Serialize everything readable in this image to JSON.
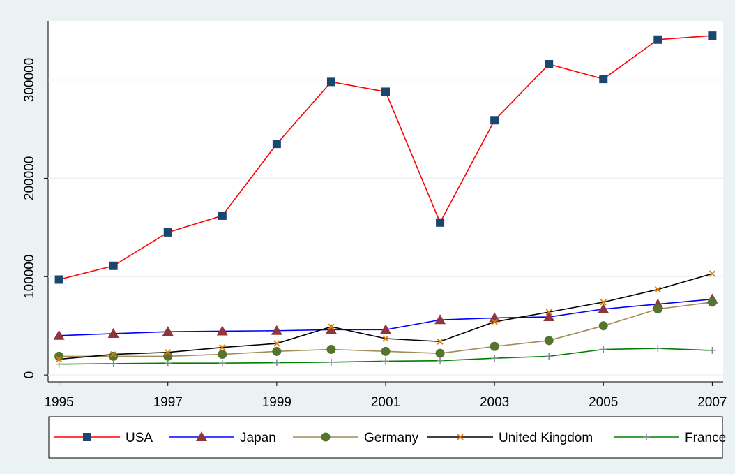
{
  "chart_data": {
    "type": "line",
    "x": [
      1995,
      1996,
      1997,
      1998,
      1999,
      2000,
      2001,
      2002,
      2003,
      2004,
      2005,
      2006,
      2007
    ],
    "xlim": [
      1994.8,
      2007.2
    ],
    "xticks": [
      1995,
      1997,
      1999,
      2001,
      2003,
      2005,
      2007
    ],
    "ylim": [
      -7000,
      360000
    ],
    "yticks": [
      0,
      100000,
      200000,
      300000
    ],
    "grid": true,
    "legend": "bottom",
    "series": [
      {
        "name": "USA",
        "color": "#ff0000",
        "marker": "square",
        "marker_color": "#1a476f",
        "values": [
          97000,
          111000,
          145000,
          162000,
          235000,
          298000,
          288000,
          155000,
          259000,
          316000,
          301000,
          341000,
          345000
        ]
      },
      {
        "name": "Japan",
        "color": "#0000ff",
        "marker": "triangle",
        "marker_color": "#90353b",
        "values": [
          40000,
          42000,
          44000,
          44500,
          45000,
          46000,
          46000,
          56000,
          58000,
          59000,
          67000,
          72000,
          77000
        ]
      },
      {
        "name": "Germany",
        "color": "#a08c5a",
        "marker": "circle",
        "marker_color": "#55752f",
        "values": [
          19000,
          19000,
          19000,
          21000,
          24000,
          26000,
          24000,
          22000,
          29000,
          35000,
          50000,
          67000,
          74000
        ]
      },
      {
        "name": "United Kingdom",
        "color": "#000000",
        "marker": "x",
        "marker_color": "#e37e00",
        "values": [
          16000,
          21000,
          23000,
          28000,
          32000,
          49000,
          37000,
          34000,
          54000,
          64000,
          74000,
          87000,
          103000
        ]
      },
      {
        "name": "France",
        "color": "#008000",
        "marker": "plus",
        "marker_color": "#7d8b8f",
        "values": [
          11000,
          11500,
          12000,
          12000,
          12500,
          13000,
          14000,
          14500,
          17000,
          19000,
          26000,
          27000,
          25000
        ]
      }
    ]
  }
}
